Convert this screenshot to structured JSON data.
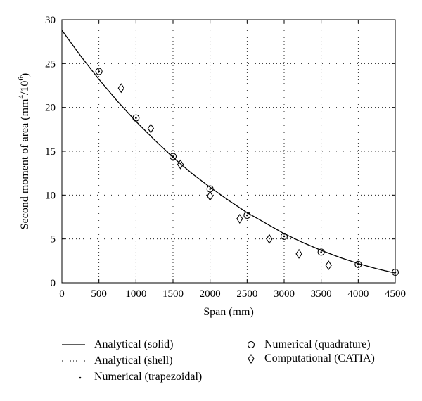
{
  "chart_data": {
    "type": "line",
    "xlabel": "Span (mm)",
    "ylabel": "Second moment of area (mm",
    "ylabel_sup": "4",
    "ylabel_mid": "/10",
    "ylabel_sup2": "6",
    "ylabel_end": ")",
    "xlim": [
      0,
      4500
    ],
    "ylim": [
      0,
      30
    ],
    "xticks": [
      0,
      500,
      1000,
      1500,
      2000,
      2500,
      3000,
      3500,
      4000,
      4500
    ],
    "yticks": [
      0,
      5,
      10,
      15,
      20,
      25,
      30
    ],
    "grid": true,
    "legend_position": "bottom",
    "series": [
      {
        "name": "Analytical (solid)",
        "style": "solid-line",
        "x": [
          0,
          250,
          500,
          750,
          1000,
          1250,
          1500,
          1750,
          2000,
          2250,
          2500,
          2750,
          3000,
          3250,
          3500,
          3750,
          4000,
          4250,
          4500
        ],
        "y": [
          28.8,
          25.9,
          23.2,
          20.7,
          18.4,
          16.3,
          14.3,
          12.5,
          10.9,
          9.4,
          8.0,
          6.8,
          5.6,
          4.6,
          3.7,
          2.9,
          2.2,
          1.6,
          1.1
        ]
      },
      {
        "name": "Analytical (shell)",
        "style": "dotted-line",
        "x": [
          0,
          250,
          500,
          750,
          1000,
          1250,
          1500,
          1750,
          2000,
          2250,
          2500,
          2750,
          3000,
          3250,
          3500,
          3750,
          4000,
          4250,
          4500
        ],
        "y": [
          28.8,
          25.9,
          23.2,
          20.7,
          18.4,
          16.3,
          14.3,
          12.5,
          10.9,
          9.4,
          8.0,
          6.8,
          5.6,
          4.6,
          3.7,
          2.9,
          2.2,
          1.6,
          1.1
        ]
      },
      {
        "name": "Numerical (trapezoidal)",
        "style": "dot",
        "x": [
          500,
          1000,
          1500,
          2000,
          2500,
          3000,
          3500,
          4000,
          4500
        ],
        "y": [
          24.1,
          18.8,
          14.4,
          10.7,
          7.7,
          5.3,
          3.5,
          2.1,
          1.2
        ]
      },
      {
        "name": "Numerical (quadrature)",
        "style": "circle",
        "x": [
          500,
          1000,
          1500,
          2000,
          2500,
          3000,
          3500,
          4000,
          4500
        ],
        "y": [
          24.1,
          18.8,
          14.4,
          10.7,
          7.7,
          5.3,
          3.5,
          2.1,
          1.2
        ]
      },
      {
        "name": "Computational (CATIA)",
        "style": "diamond",
        "x": [
          800,
          1200,
          1600,
          2000,
          2400,
          2800,
          3200,
          3600
        ],
        "y": [
          22.2,
          17.6,
          13.5,
          9.9,
          7.3,
          5.0,
          3.3,
          2.0
        ]
      }
    ]
  }
}
